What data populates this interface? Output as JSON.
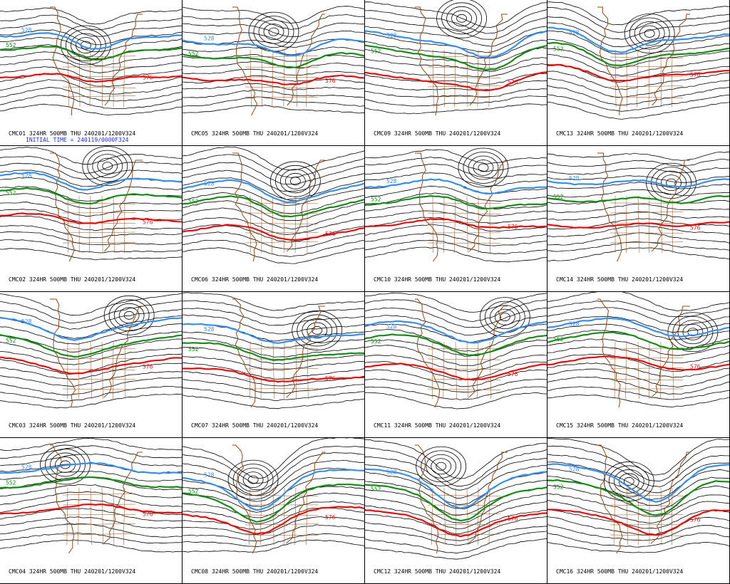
{
  "colors": {
    "contour": "#000000",
    "blue_552": "#3a8fe8",
    "green_552": "#1a8a1a",
    "red_576": "#e01010",
    "map": "#8b4a1a"
  },
  "contour_labels": {
    "blue": "528",
    "green": "552",
    "red": "576"
  },
  "initial_time": "INITIAL TIME = 240119/0000F324",
  "panels": [
    {
      "caption": "CMC01 324HR 500MB THU 240201/1200V324"
    },
    {
      "caption": "CMC05 324HR 500MB THU 240201/1200V324"
    },
    {
      "caption": "CMC09 324HR 500MB THU 240201/1200V324"
    },
    {
      "caption": "CMC13 324HR 500MB THU 240201/1200V324"
    },
    {
      "caption": "CMC02 324HR 500MB THU 240201/1200V324"
    },
    {
      "caption": "CMC06 324HR 500MB THU 240201/1200V324"
    },
    {
      "caption": "CMC10 324HR 500MB THU 240201/1200V324"
    },
    {
      "caption": "CMC14 324HR 500MB THU 240201/1200V324"
    },
    {
      "caption": "CMC03 324HR 500MB THU 240201/1200V324"
    },
    {
      "caption": "CMC07 324HR 500MB THU 240201/1200V324"
    },
    {
      "caption": "CMC11 324HR 500MB THU 240201/1200V324"
    },
    {
      "caption": "CMC15 324HR 500MB THU 240201/1200V324"
    },
    {
      "caption": "CMC04 324HR 500MB THU 240201/1200V324"
    },
    {
      "caption": "CMC08 324HR 500MB THU 240201/1200V324"
    },
    {
      "caption": "CMC12 324HR 500MB THU 240201/1200V324"
    },
    {
      "caption": "CMC16 324HR 500MB THU 240201/1200V324"
    }
  ]
}
